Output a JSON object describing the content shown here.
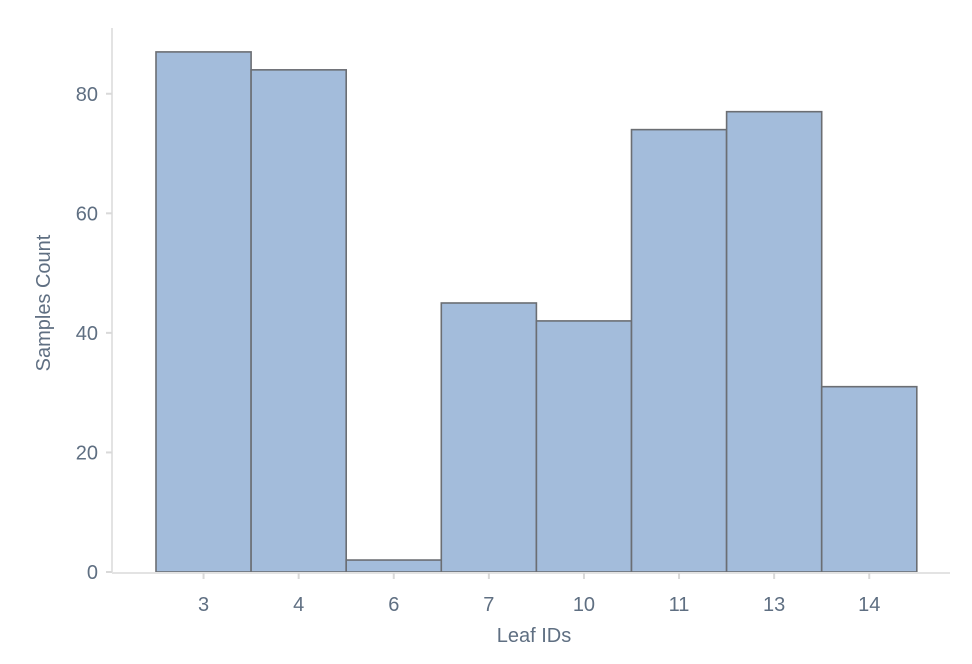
{
  "chart_data": {
    "type": "bar",
    "categories": [
      "3",
      "4",
      "6",
      "7",
      "10",
      "11",
      "13",
      "14"
    ],
    "values": [
      87,
      84,
      2,
      45,
      42,
      74,
      77,
      31
    ],
    "title": "",
    "xlabel": "Leaf IDs",
    "ylabel": "Samples Count",
    "ylim": [
      0,
      91
    ],
    "yticks": [
      0,
      20,
      40,
      60,
      80
    ],
    "grid": false,
    "legend": "none",
    "colors": {
      "bar_fill": "#a3bcdb",
      "bar_stroke": "#6b6e73",
      "axis": "#e3e3e3",
      "text": "#5f6f82"
    }
  }
}
